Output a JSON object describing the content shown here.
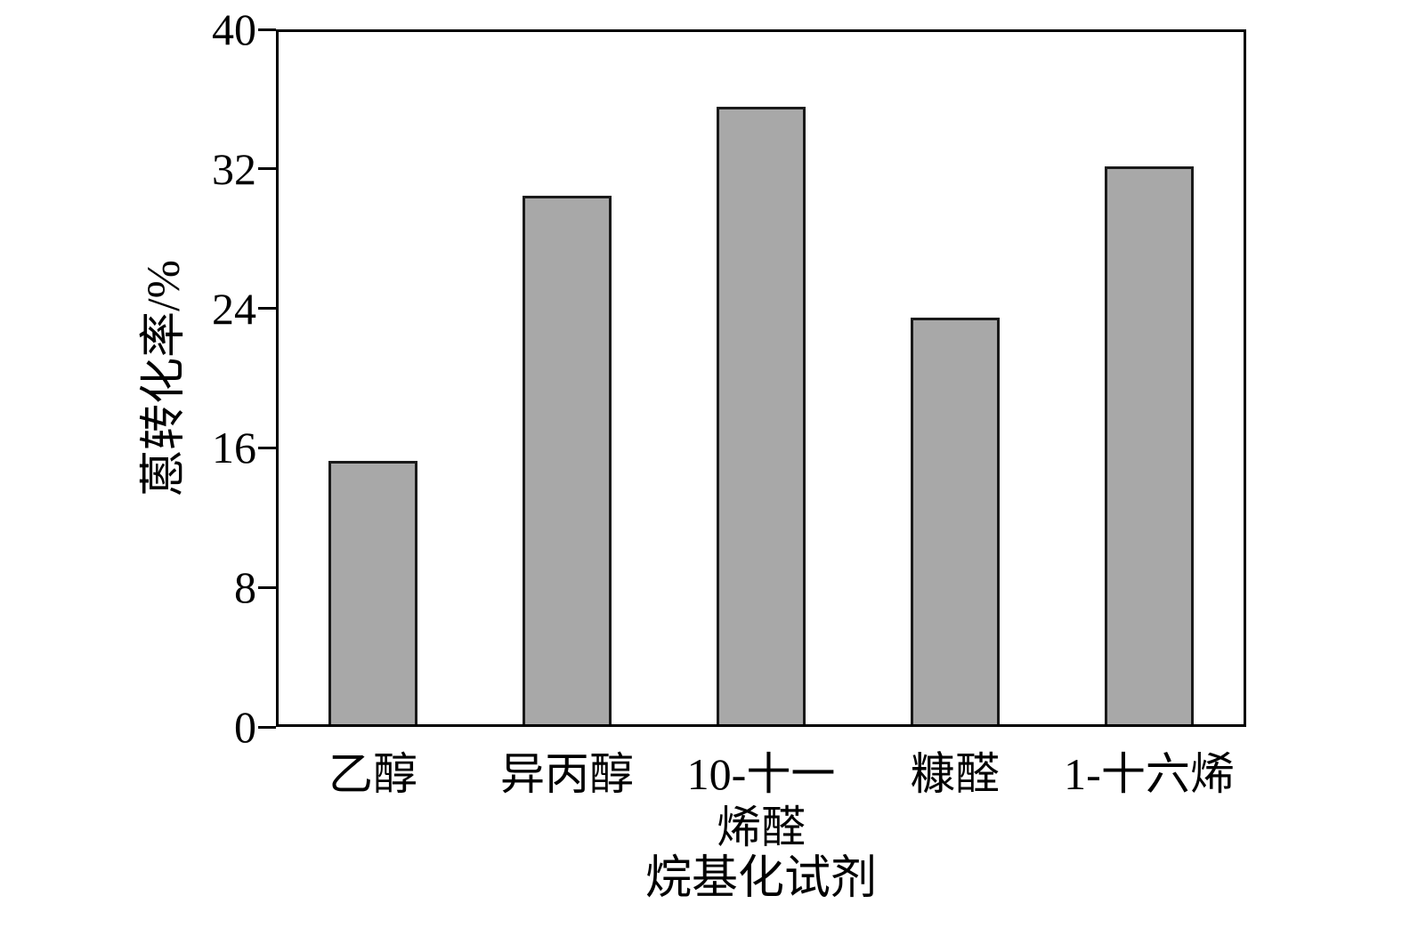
{
  "figure": {
    "background": "#ffffff",
    "bar_fill": "#a8a8a8",
    "bar_border": "#1a1a1a",
    "axis_color": "#000000"
  },
  "chart_data": {
    "type": "bar",
    "title": "",
    "xlabel": "烷基化试剂",
    "ylabel": "蒽转化率/%",
    "categories": [
      "乙醇",
      "异丙醇",
      "10-十一\n烯醛",
      "糠醛",
      "1-十六烯"
    ],
    "values": [
      15.1,
      30.3,
      35.4,
      23.3,
      32.0
    ],
    "ylim": [
      0,
      40
    ],
    "yticks": [
      0,
      8,
      16,
      24,
      32,
      40
    ],
    "grid": false,
    "legend": "none"
  }
}
